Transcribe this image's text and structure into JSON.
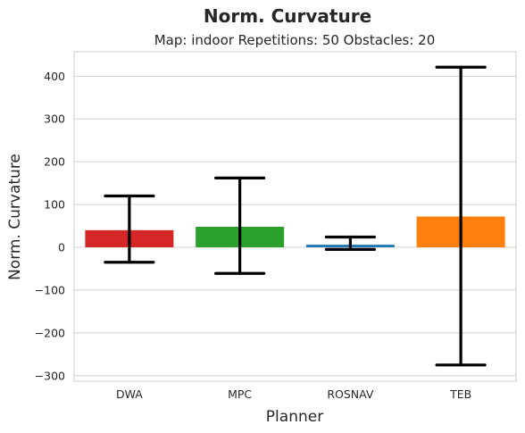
{
  "chart_data": {
    "type": "bar",
    "title": "Norm. Curvature",
    "subtitle": "Map: indoor Repetitions: 50 Obstacles: 20",
    "xlabel": "Planner",
    "ylabel": "Norm. Curvature",
    "categories": [
      "DWA",
      "MPC",
      "ROSNAV",
      "TEB"
    ],
    "values": [
      40,
      48,
      6,
      72
    ],
    "error_low": [
      -35,
      -61,
      -5,
      -275
    ],
    "error_high": [
      120,
      162,
      24,
      421
    ],
    "colors": [
      "#d62728",
      "#2ca02c",
      "#1f77b4",
      "#ff7f0e"
    ],
    "ylim": [
      -313,
      457
    ],
    "yticks": [
      -300,
      -200,
      -100,
      0,
      100,
      200,
      300,
      400
    ],
    "ytick_labels": [
      "−300",
      "−200",
      "−100",
      "0",
      "100",
      "200",
      "300",
      "400"
    ],
    "grid": true
  }
}
